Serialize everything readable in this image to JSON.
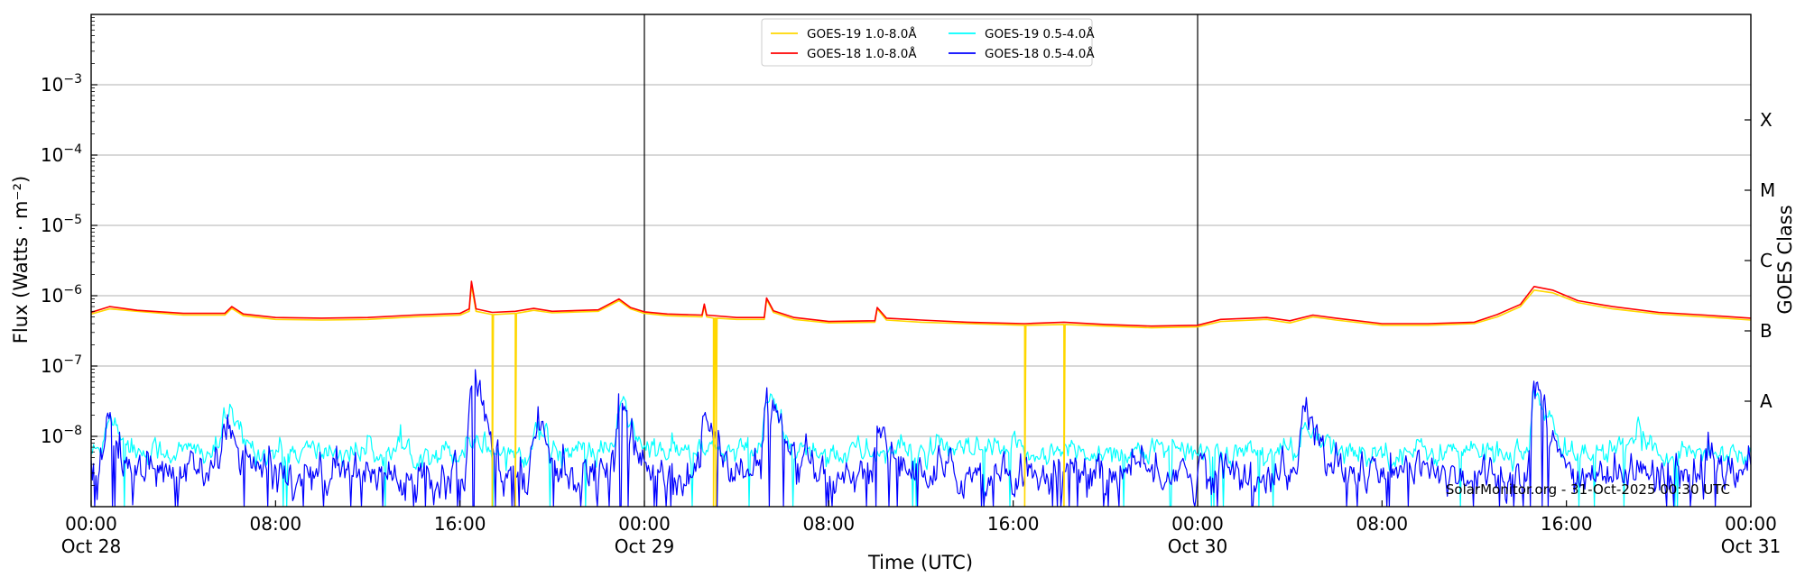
{
  "chart_data": {
    "type": "line",
    "title": "",
    "xlabel": "Time (UTC)",
    "ylabel": "Flux (Watts · m⁻²)",
    "y2label": "GOES Class",
    "yscale": "log",
    "ylim": [
      1e-09,
      0.01
    ],
    "xlim_hours": [
      0,
      72
    ],
    "x_unit": "hours after 2025-10-28 00:00 UTC",
    "grid": "horizontal gridlines at each decade",
    "legend_placement": "top-center",
    "day_separators_hours": [
      24,
      48
    ],
    "x_ticks": [
      {
        "h": 0,
        "time": "00:00",
        "date": "Oct 28"
      },
      {
        "h": 8,
        "time": "08:00",
        "date": ""
      },
      {
        "h": 16,
        "time": "16:00",
        "date": ""
      },
      {
        "h": 24,
        "time": "00:00",
        "date": "Oct 29"
      },
      {
        "h": 32,
        "time": "08:00",
        "date": ""
      },
      {
        "h": 40,
        "time": "16:00",
        "date": ""
      },
      {
        "h": 48,
        "time": "00:00",
        "date": "Oct 30"
      },
      {
        "h": 56,
        "time": "08:00",
        "date": ""
      },
      {
        "h": 64,
        "time": "16:00",
        "date": ""
      },
      {
        "h": 72,
        "time": "00:00",
        "date": "Oct 31"
      }
    ],
    "y_ticks": [
      {
        "exp": -3,
        "label": "10",
        "sup": "−3"
      },
      {
        "exp": -4,
        "label": "10",
        "sup": "−4"
      },
      {
        "exp": -5,
        "label": "10",
        "sup": "−5"
      },
      {
        "exp": -6,
        "label": "10",
        "sup": "−6"
      },
      {
        "exp": -7,
        "label": "10",
        "sup": "−7"
      },
      {
        "exp": -8,
        "label": "10",
        "sup": "−8"
      }
    ],
    "goes_classes": [
      {
        "label": "X",
        "exp": -3.5
      },
      {
        "label": "M",
        "exp": -4.5
      },
      {
        "label": "C",
        "exp": -5.5
      },
      {
        "label": "B",
        "exp": -6.5
      },
      {
        "label": "A",
        "exp": -7.5
      }
    ],
    "watermark": "SolarMonitor.org - 31-Oct-2025 00:30 UTC",
    "series": [
      {
        "name": "GOES-19 1.0-8.0Å",
        "color": "#ffd700",
        "points": [
          [
            0,
            5.5e-07
          ],
          [
            0.8,
            6.5e-07
          ],
          [
            2,
            6e-07
          ],
          [
            4,
            5.3e-07
          ],
          [
            5.8,
            5.3e-07
          ],
          [
            6.1,
            6.6e-07
          ],
          [
            6.6,
            5.2e-07
          ],
          [
            8,
            4.6e-07
          ],
          [
            10,
            4.5e-07
          ],
          [
            12,
            4.6e-07
          ],
          [
            14,
            5e-07
          ],
          [
            16,
            5.3e-07
          ],
          [
            16.4,
            6e-07
          ],
          [
            16.5,
            1.4e-06
          ],
          [
            16.7,
            6e-07
          ],
          [
            17.4,
            5.4e-07
          ],
          [
            17.4,
            1e-09
          ],
          [
            17.45,
            5.4e-07
          ],
          [
            18.4,
            5.6e-07
          ],
          [
            18.4,
            1e-09
          ],
          [
            18.45,
            5.6e-07
          ],
          [
            19.2,
            6.2e-07
          ],
          [
            20,
            5.7e-07
          ],
          [
            22,
            6e-07
          ],
          [
            22.9,
            8.5e-07
          ],
          [
            23.4,
            6.5e-07
          ],
          [
            24,
            5.6e-07
          ],
          [
            25,
            5.2e-07
          ],
          [
            26.5,
            5e-07
          ],
          [
            26.6,
            7.2e-07
          ],
          [
            26.7,
            5e-07
          ],
          [
            27.0,
            4.8e-07
          ],
          [
            27.0,
            1e-09
          ],
          [
            27.05,
            4.8e-07
          ],
          [
            27.1,
            4.8e-07
          ],
          [
            27.1,
            1e-09
          ],
          [
            27.15,
            4.8e-07
          ],
          [
            28,
            4.6e-07
          ],
          [
            29.2,
            4.6e-07
          ],
          [
            29.3,
            8.8e-07
          ],
          [
            29.6,
            5.8e-07
          ],
          [
            30.5,
            4.6e-07
          ],
          [
            32,
            4.1e-07
          ],
          [
            34,
            4.2e-07
          ],
          [
            34.1,
            6.5e-07
          ],
          [
            34.5,
            4.5e-07
          ],
          [
            36,
            4.2e-07
          ],
          [
            38,
            4e-07
          ],
          [
            40.5,
            3.8e-07
          ],
          [
            40.5,
            1e-09
          ],
          [
            40.55,
            3.8e-07
          ],
          [
            42.2,
            3.9e-07
          ],
          [
            42.2,
            1e-09
          ],
          [
            42.25,
            3.9e-07
          ],
          [
            44,
            3.7e-07
          ],
          [
            46,
            3.5e-07
          ],
          [
            48,
            3.6e-07
          ],
          [
            49,
            4.3e-07
          ],
          [
            51,
            4.6e-07
          ],
          [
            52,
            4.1e-07
          ],
          [
            53,
            5e-07
          ],
          [
            54,
            4.5e-07
          ],
          [
            56,
            3.8e-07
          ],
          [
            58,
            3.8e-07
          ],
          [
            60,
            4e-07
          ],
          [
            61,
            5e-07
          ],
          [
            62,
            7e-07
          ],
          [
            62.6,
            1.2e-06
          ],
          [
            63.4,
            1.1e-06
          ],
          [
            64.5,
            8e-07
          ],
          [
            66,
            6.5e-07
          ],
          [
            68,
            5.5e-07
          ],
          [
            70,
            5e-07
          ],
          [
            72,
            4.5e-07
          ]
        ]
      },
      {
        "name": "GOES-18 1.0-8.0Å",
        "color": "#ff0000",
        "points": [
          [
            0,
            5.8e-07
          ],
          [
            0.8,
            7e-07
          ],
          [
            2,
            6.2e-07
          ],
          [
            4,
            5.6e-07
          ],
          [
            5.8,
            5.6e-07
          ],
          [
            6.1,
            7e-07
          ],
          [
            6.6,
            5.5e-07
          ],
          [
            8,
            4.9e-07
          ],
          [
            10,
            4.8e-07
          ],
          [
            12,
            4.9e-07
          ],
          [
            14,
            5.3e-07
          ],
          [
            16,
            5.6e-07
          ],
          [
            16.4,
            6.5e-07
          ],
          [
            16.5,
            1.6e-06
          ],
          [
            16.7,
            6.5e-07
          ],
          [
            17.4,
            5.8e-07
          ],
          [
            18.4,
            6e-07
          ],
          [
            19.2,
            6.6e-07
          ],
          [
            20,
            6e-07
          ],
          [
            22,
            6.3e-07
          ],
          [
            22.9,
            9e-07
          ],
          [
            23.4,
            6.8e-07
          ],
          [
            24,
            5.9e-07
          ],
          [
            25,
            5.5e-07
          ],
          [
            26.5,
            5.3e-07
          ],
          [
            26.6,
            7.6e-07
          ],
          [
            26.7,
            5.3e-07
          ],
          [
            28,
            4.9e-07
          ],
          [
            29.2,
            4.9e-07
          ],
          [
            29.3,
            9.3e-07
          ],
          [
            29.6,
            6.1e-07
          ],
          [
            30.5,
            4.9e-07
          ],
          [
            32,
            4.3e-07
          ],
          [
            34,
            4.4e-07
          ],
          [
            34.1,
            6.8e-07
          ],
          [
            34.5,
            4.8e-07
          ],
          [
            36,
            4.5e-07
          ],
          [
            38,
            4.2e-07
          ],
          [
            40.5,
            4e-07
          ],
          [
            42.2,
            4.2e-07
          ],
          [
            44,
            3.9e-07
          ],
          [
            46,
            3.7e-07
          ],
          [
            48,
            3.8e-07
          ],
          [
            49,
            4.6e-07
          ],
          [
            51,
            4.9e-07
          ],
          [
            52,
            4.4e-07
          ],
          [
            53,
            5.3e-07
          ],
          [
            54,
            4.8e-07
          ],
          [
            56,
            4e-07
          ],
          [
            58,
            4e-07
          ],
          [
            60,
            4.2e-07
          ],
          [
            61,
            5.4e-07
          ],
          [
            62,
            7.5e-07
          ],
          [
            62.6,
            1.35e-06
          ],
          [
            63.4,
            1.2e-06
          ],
          [
            64.5,
            8.5e-07
          ],
          [
            66,
            7e-07
          ],
          [
            68,
            5.8e-07
          ],
          [
            70,
            5.3e-07
          ],
          [
            72,
            4.8e-07
          ]
        ]
      },
      {
        "name": "GOES-19 0.5-4.0Å",
        "color": "#00ffff",
        "base": 6e-09,
        "events": [
          [
            0.7,
            2e-08
          ],
          [
            5.8,
            2e-08
          ],
          [
            16.4,
            1e-08
          ],
          [
            19.2,
            1.2e-08
          ],
          [
            22.9,
            2.4e-08
          ],
          [
            26.6,
            6e-09
          ],
          [
            29.3,
            3.3e-08
          ],
          [
            44,
            5e-09
          ],
          [
            52.6,
            1.2e-08
          ],
          [
            62.6,
            3.5e-08
          ],
          [
            67,
            1e-08
          ]
        ]
      },
      {
        "name": "GOES-18 0.5-4.0Å",
        "color": "#0000ff",
        "base": 3e-09,
        "events": [
          [
            0.7,
            1.2e-08
          ],
          [
            5.8,
            1.6e-08
          ],
          [
            16.5,
            1.1e-07
          ],
          [
            19.2,
            1.5e-08
          ],
          [
            22.9,
            2.2e-08
          ],
          [
            26.6,
            1.5e-08
          ],
          [
            29.3,
            3.5e-08
          ],
          [
            34.1,
            1.2e-08
          ],
          [
            52.6,
            2.3e-08
          ],
          [
            62.6,
            4.1e-08
          ]
        ]
      }
    ]
  }
}
